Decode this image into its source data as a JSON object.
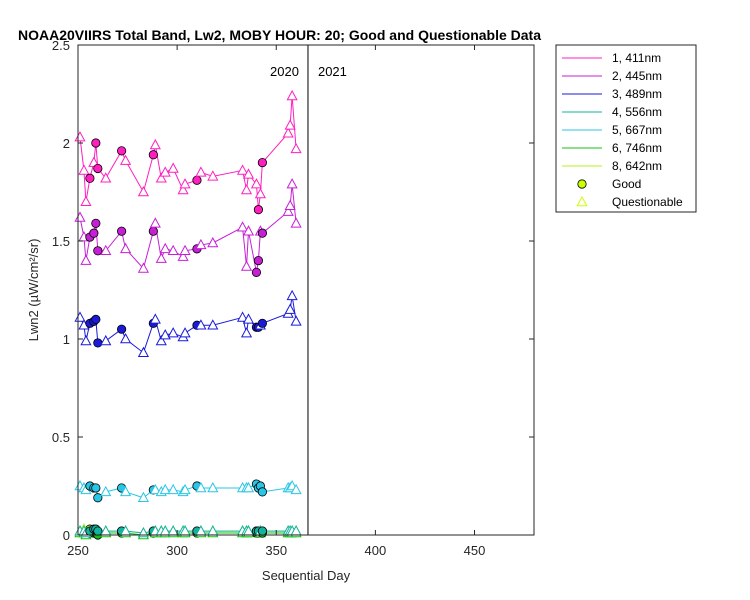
{
  "chart_data": {
    "type": "line",
    "title": "NOAA20VIIRS Total Band, Lw2, MOBY HOUR: 20;  Good and Questionable Data",
    "xlabel": "Sequential Day",
    "ylabel": "Lwn2 (µW/cm²/sr)",
    "xlim": [
      250,
      480
    ],
    "ylim": [
      0,
      2.5
    ],
    "xticks": [
      250,
      300,
      350,
      400,
      450
    ],
    "yticks": [
      0,
      0.5,
      1,
      1.5,
      2,
      2.5
    ],
    "year_divider": 366,
    "year_labels": [
      "2020",
      "2021"
    ],
    "grid": false,
    "legend_position": "outside-top-right",
    "x": [
      251,
      253,
      254,
      256,
      258,
      259,
      260,
      264,
      272,
      274,
      283,
      288,
      289,
      292,
      294,
      298,
      303,
      304,
      310,
      312,
      318,
      333,
      335,
      336,
      340,
      341,
      342,
      343,
      356,
      357,
      358,
      360
    ],
    "series": [
      {
        "name": "1, 411nm",
        "color": "#ff1fbf",
        "values": [
          2.03,
          1.86,
          1.7,
          1.82,
          1.9,
          2.0,
          1.87,
          1.82,
          1.96,
          1.91,
          1.75,
          1.94,
          1.99,
          1.82,
          1.85,
          1.87,
          1.76,
          1.79,
          1.81,
          1.85,
          1.83,
          1.86,
          1.76,
          1.84,
          1.79,
          1.66,
          1.74,
          1.9,
          2.05,
          2.09,
          2.24,
          1.97
        ],
        "quality": [
          "Q",
          "Q",
          "Q",
          "G",
          "Q",
          "G",
          "G",
          "Q",
          "G",
          "Q",
          "Q",
          "G",
          "Q",
          "Q",
          "Q",
          "Q",
          "Q",
          "Q",
          "G",
          "Q",
          "Q",
          "Q",
          "Q",
          "Q",
          "Q",
          "G",
          "Q",
          "G",
          "Q",
          "Q",
          "Q",
          "Q"
        ]
      },
      {
        "name": "2, 445nm",
        "color": "#c71fd6",
        "values": [
          1.62,
          1.52,
          1.4,
          1.52,
          1.54,
          1.59,
          1.45,
          1.45,
          1.55,
          1.46,
          1.36,
          1.55,
          1.59,
          1.41,
          1.46,
          1.45,
          1.42,
          1.45,
          1.46,
          1.48,
          1.49,
          1.57,
          1.37,
          1.55,
          1.34,
          1.4,
          1.55,
          1.54,
          1.65,
          1.68,
          1.79,
          1.59
        ],
        "quality": [
          "Q",
          "Q",
          "Q",
          "G",
          "G",
          "G",
          "G",
          "Q",
          "G",
          "Q",
          "Q",
          "G",
          "Q",
          "Q",
          "Q",
          "Q",
          "Q",
          "Q",
          "G",
          "Q",
          "Q",
          "Q",
          "Q",
          "Q",
          "G",
          "G",
          "Q",
          "G",
          "Q",
          "Q",
          "Q",
          "Q"
        ]
      },
      {
        "name": "3, 489nm",
        "color": "#1a1ad9",
        "values": [
          1.11,
          1.07,
          0.99,
          1.08,
          1.09,
          1.1,
          0.98,
          0.99,
          1.05,
          1.0,
          0.93,
          1.08,
          1.1,
          0.99,
          1.02,
          1.03,
          1.01,
          1.03,
          1.07,
          1.07,
          1.07,
          1.11,
          1.03,
          1.1,
          1.06,
          1.06,
          1.07,
          1.08,
          1.13,
          1.15,
          1.22,
          1.09
        ],
        "quality": [
          "Q",
          "Q",
          "Q",
          "G",
          "G",
          "G",
          "G",
          "Q",
          "G",
          "Q",
          "Q",
          "G",
          "Q",
          "Q",
          "Q",
          "Q",
          "Q",
          "Q",
          "G",
          "Q",
          "Q",
          "Q",
          "Q",
          "Q",
          "G",
          "G",
          "Q",
          "G",
          "Q",
          "Q",
          "Q",
          "Q"
        ]
      },
      {
        "name": "4, 556nm",
        "color": "#12b3a0",
        "values": [
          0.02,
          0.02,
          0.01,
          0.02,
          0.03,
          0.03,
          0.02,
          0.02,
          0.02,
          0.02,
          0.01,
          0.02,
          0.02,
          0.02,
          0.02,
          0.02,
          0.02,
          0.02,
          0.02,
          0.02,
          0.02,
          0.02,
          0.02,
          0.02,
          0.02,
          0.02,
          0.02,
          0.02,
          0.02,
          0.02,
          0.02,
          0.02
        ],
        "quality": [
          "Q",
          "Q",
          "Q",
          "G",
          "G",
          "G",
          "G",
          "Q",
          "G",
          "Q",
          "Q",
          "G",
          "Q",
          "Q",
          "Q",
          "Q",
          "Q",
          "Q",
          "G",
          "Q",
          "Q",
          "Q",
          "Q",
          "Q",
          "G",
          "G",
          "Q",
          "G",
          "Q",
          "Q",
          "Q",
          "Q"
        ]
      },
      {
        "name": "5, 667nm",
        "color": "#28c6e6",
        "values": [
          0.25,
          0.24,
          0.23,
          0.25,
          0.24,
          0.24,
          0.19,
          0.22,
          0.24,
          0.22,
          0.19,
          0.23,
          0.23,
          0.22,
          0.23,
          0.23,
          0.22,
          0.23,
          0.25,
          0.24,
          0.24,
          0.24,
          0.24,
          0.24,
          0.26,
          0.24,
          0.25,
          0.22,
          0.24,
          0.24,
          0.25,
          0.23
        ],
        "quality": [
          "Q",
          "Q",
          "Q",
          "G",
          "G",
          "G",
          "G",
          "Q",
          "G",
          "Q",
          "Q",
          "G",
          "Q",
          "Q",
          "Q",
          "Q",
          "Q",
          "Q",
          "G",
          "Q",
          "Q",
          "Q",
          "Q",
          "Q",
          "G",
          "G",
          "G",
          "G",
          "Q",
          "Q",
          "Q",
          "Q"
        ]
      },
      {
        "name": "6, 746nm",
        "color": "#10c010",
        "values": [
          0.01,
          0.01,
          0.0,
          0.01,
          0.01,
          0.01,
          0.0,
          0.01,
          0.01,
          0.01,
          0.0,
          0.01,
          0.01,
          0.01,
          0.01,
          0.01,
          0.01,
          0.01,
          0.01,
          0.01,
          0.01,
          0.01,
          0.01,
          0.01,
          0.01,
          0.01,
          0.01,
          0.01,
          0.01,
          0.01,
          0.01,
          0.01
        ],
        "quality": [
          "Q",
          "Q",
          "Q",
          "G",
          "G",
          "G",
          "G",
          "Q",
          "G",
          "Q",
          "Q",
          "G",
          "Q",
          "Q",
          "Q",
          "Q",
          "Q",
          "Q",
          "G",
          "Q",
          "Q",
          "Q",
          "Q",
          "Q",
          "G",
          "G",
          "Q",
          "G",
          "Q",
          "Q",
          "Q",
          "Q"
        ]
      },
      {
        "name": "8, 642nm",
        "color": "#b4f01e",
        "values": [
          0.02,
          0.03,
          0.01,
          0.03,
          0.02,
          0.02,
          0.01,
          0.02,
          0.02,
          0.02,
          0.01,
          0.02,
          0.02,
          0.02,
          0.02,
          0.02,
          0.02,
          0.02,
          0.02,
          0.02,
          0.02,
          0.02,
          0.02,
          0.02,
          0.02,
          0.02,
          0.02,
          0.02,
          0.02,
          0.02,
          0.02,
          0.02
        ],
        "quality": [
          "Q",
          "Q",
          "Q",
          "G",
          "G",
          "G",
          "G",
          "Q",
          "G",
          "Q",
          "Q",
          "G",
          "Q",
          "Q",
          "Q",
          "Q",
          "Q",
          "Q",
          "G",
          "Q",
          "Q",
          "Q",
          "Q",
          "Q",
          "G",
          "G",
          "Q",
          "G",
          "Q",
          "Q",
          "Q",
          "Q"
        ]
      }
    ],
    "marker_legend": [
      {
        "label": "Good",
        "marker": "circle",
        "color": "#ccff00"
      },
      {
        "label": "Questionable",
        "marker": "triangle",
        "color": "#ccff00"
      }
    ]
  }
}
